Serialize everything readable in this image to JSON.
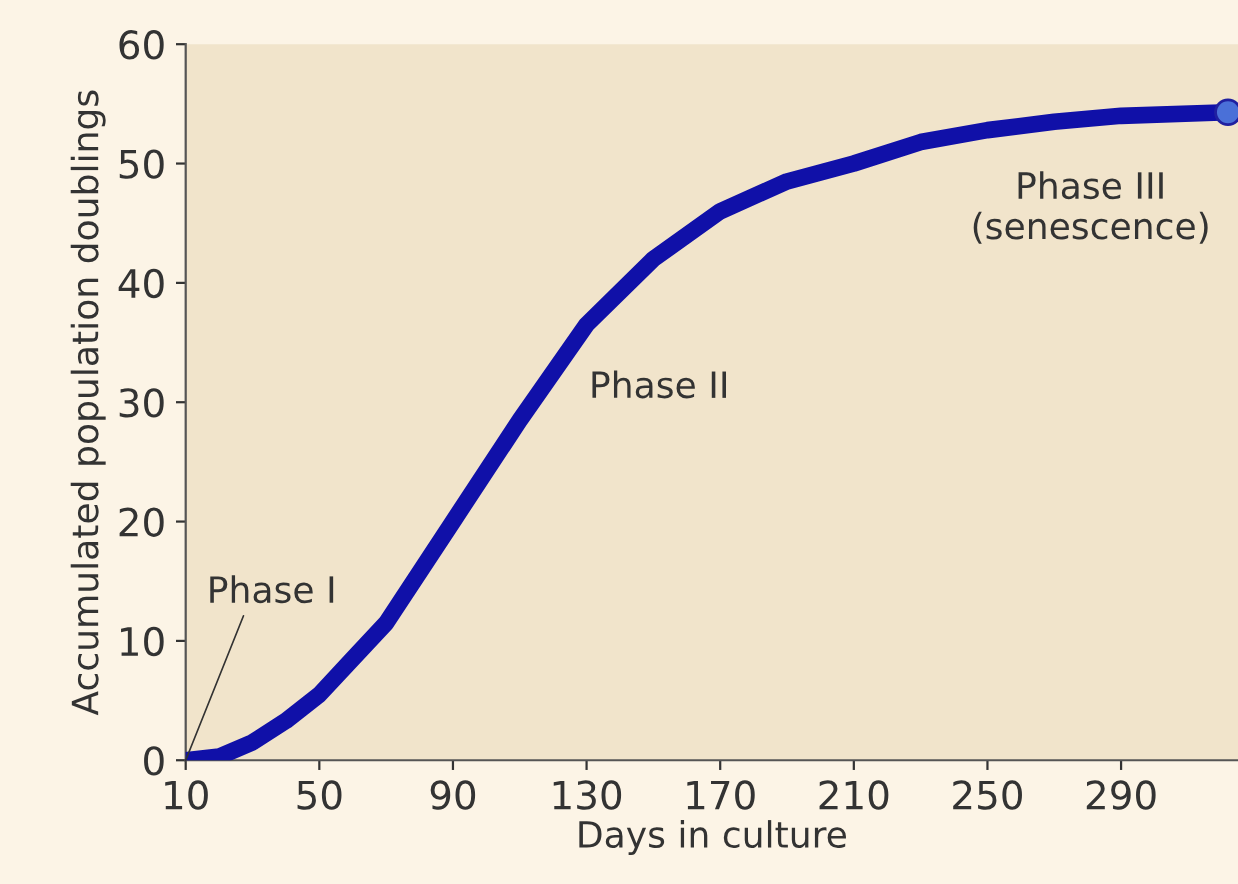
{
  "chart_data": {
    "type": "line",
    "xlabel": "Days in culture",
    "ylabel": "Accumulated population doublings",
    "xlim": [
      10,
      325
    ],
    "xticks": [
      10,
      50,
      90,
      130,
      170,
      210,
      250,
      290
    ],
    "ylim": [
      0,
      60
    ],
    "yticks": [
      0,
      10,
      20,
      30,
      40,
      50,
      60
    ],
    "grid": false,
    "legend": false,
    "series": [
      {
        "color": "#1010a8",
        "x": [
          10,
          20,
          30,
          40,
          50,
          60,
          70,
          90,
          110,
          130,
          150,
          170,
          190,
          210,
          230,
          250,
          270,
          290,
          322
        ],
        "values": [
          0,
          0.3,
          1.5,
          3.3,
          5.5,
          8.5,
          11.5,
          20,
          28.5,
          36.5,
          42,
          46,
          48.5,
          50,
          51.8,
          52.8,
          53.5,
          54,
          54.3
        ]
      },
      {
        "type": "scatter",
        "color": "#4a70d8",
        "x": [
          322
        ],
        "values": [
          54.3
        ]
      }
    ],
    "annotations": [
      {
        "text": "Phase I",
        "x": 10,
        "y": 0
      },
      "Phase II",
      "Phase III\n(senescence)"
    ]
  }
}
